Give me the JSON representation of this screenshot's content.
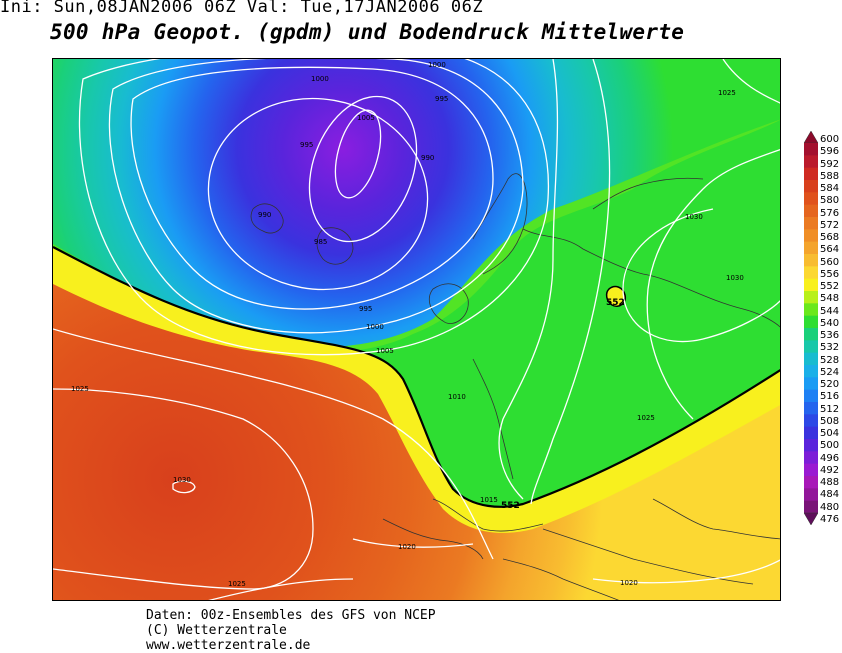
{
  "header": {
    "init_run": "Ini: Sun,08JAN2006 06Z Val: Tue,17JAN2006 06Z",
    "title": "500 hPa Geopot. (gpdm) und Bodendruck Mittelwerte"
  },
  "map": {
    "isobar_labels": [
      "1000",
      "1000",
      "995",
      "1005",
      "995",
      "990",
      "985",
      "990",
      "995",
      "1000",
      "1005",
      "1010",
      "1015",
      "1020",
      "1025",
      "1025",
      "1030",
      "1030",
      "1025",
      "1020",
      "1025",
      "1030"
    ],
    "geopotential_labels": [
      "552",
      "552"
    ]
  },
  "legend": {
    "levels": [
      "600",
      "596",
      "592",
      "588",
      "584",
      "580",
      "576",
      "572",
      "568",
      "564",
      "560",
      "556",
      "552",
      "548",
      "544",
      "540",
      "536",
      "532",
      "528",
      "524",
      "520",
      "516",
      "512",
      "508",
      "504",
      "500",
      "496",
      "492",
      "488",
      "484",
      "480",
      "476"
    ],
    "colors": [
      "#8b0a2a",
      "#a3102e",
      "#bb1a2c",
      "#cf2a22",
      "#d8401c",
      "#e0521c",
      "#e5651e",
      "#eb7a22",
      "#f08e26",
      "#f4a42c",
      "#f8bc30",
      "#fcd832",
      "#f8f01e",
      "#b8f01a",
      "#6ae81c",
      "#2ede32",
      "#1ad07a",
      "#18c8aa",
      "#18bcd0",
      "#1ab0e8",
      "#1a9cf4",
      "#1e80f4",
      "#2464ee",
      "#2c48e6",
      "#3a32de",
      "#5a24dc",
      "#7c1ed8",
      "#9a1ad2",
      "#a818b8",
      "#92169a",
      "#7a1478",
      "#5e0e5a"
    ]
  },
  "footer": {
    "line1": "Daten: 00z-Ensembles des GFS von NCEP",
    "line2": "(C) Wetterzentrale",
    "line3": "www.wetterzentrale.de"
  }
}
